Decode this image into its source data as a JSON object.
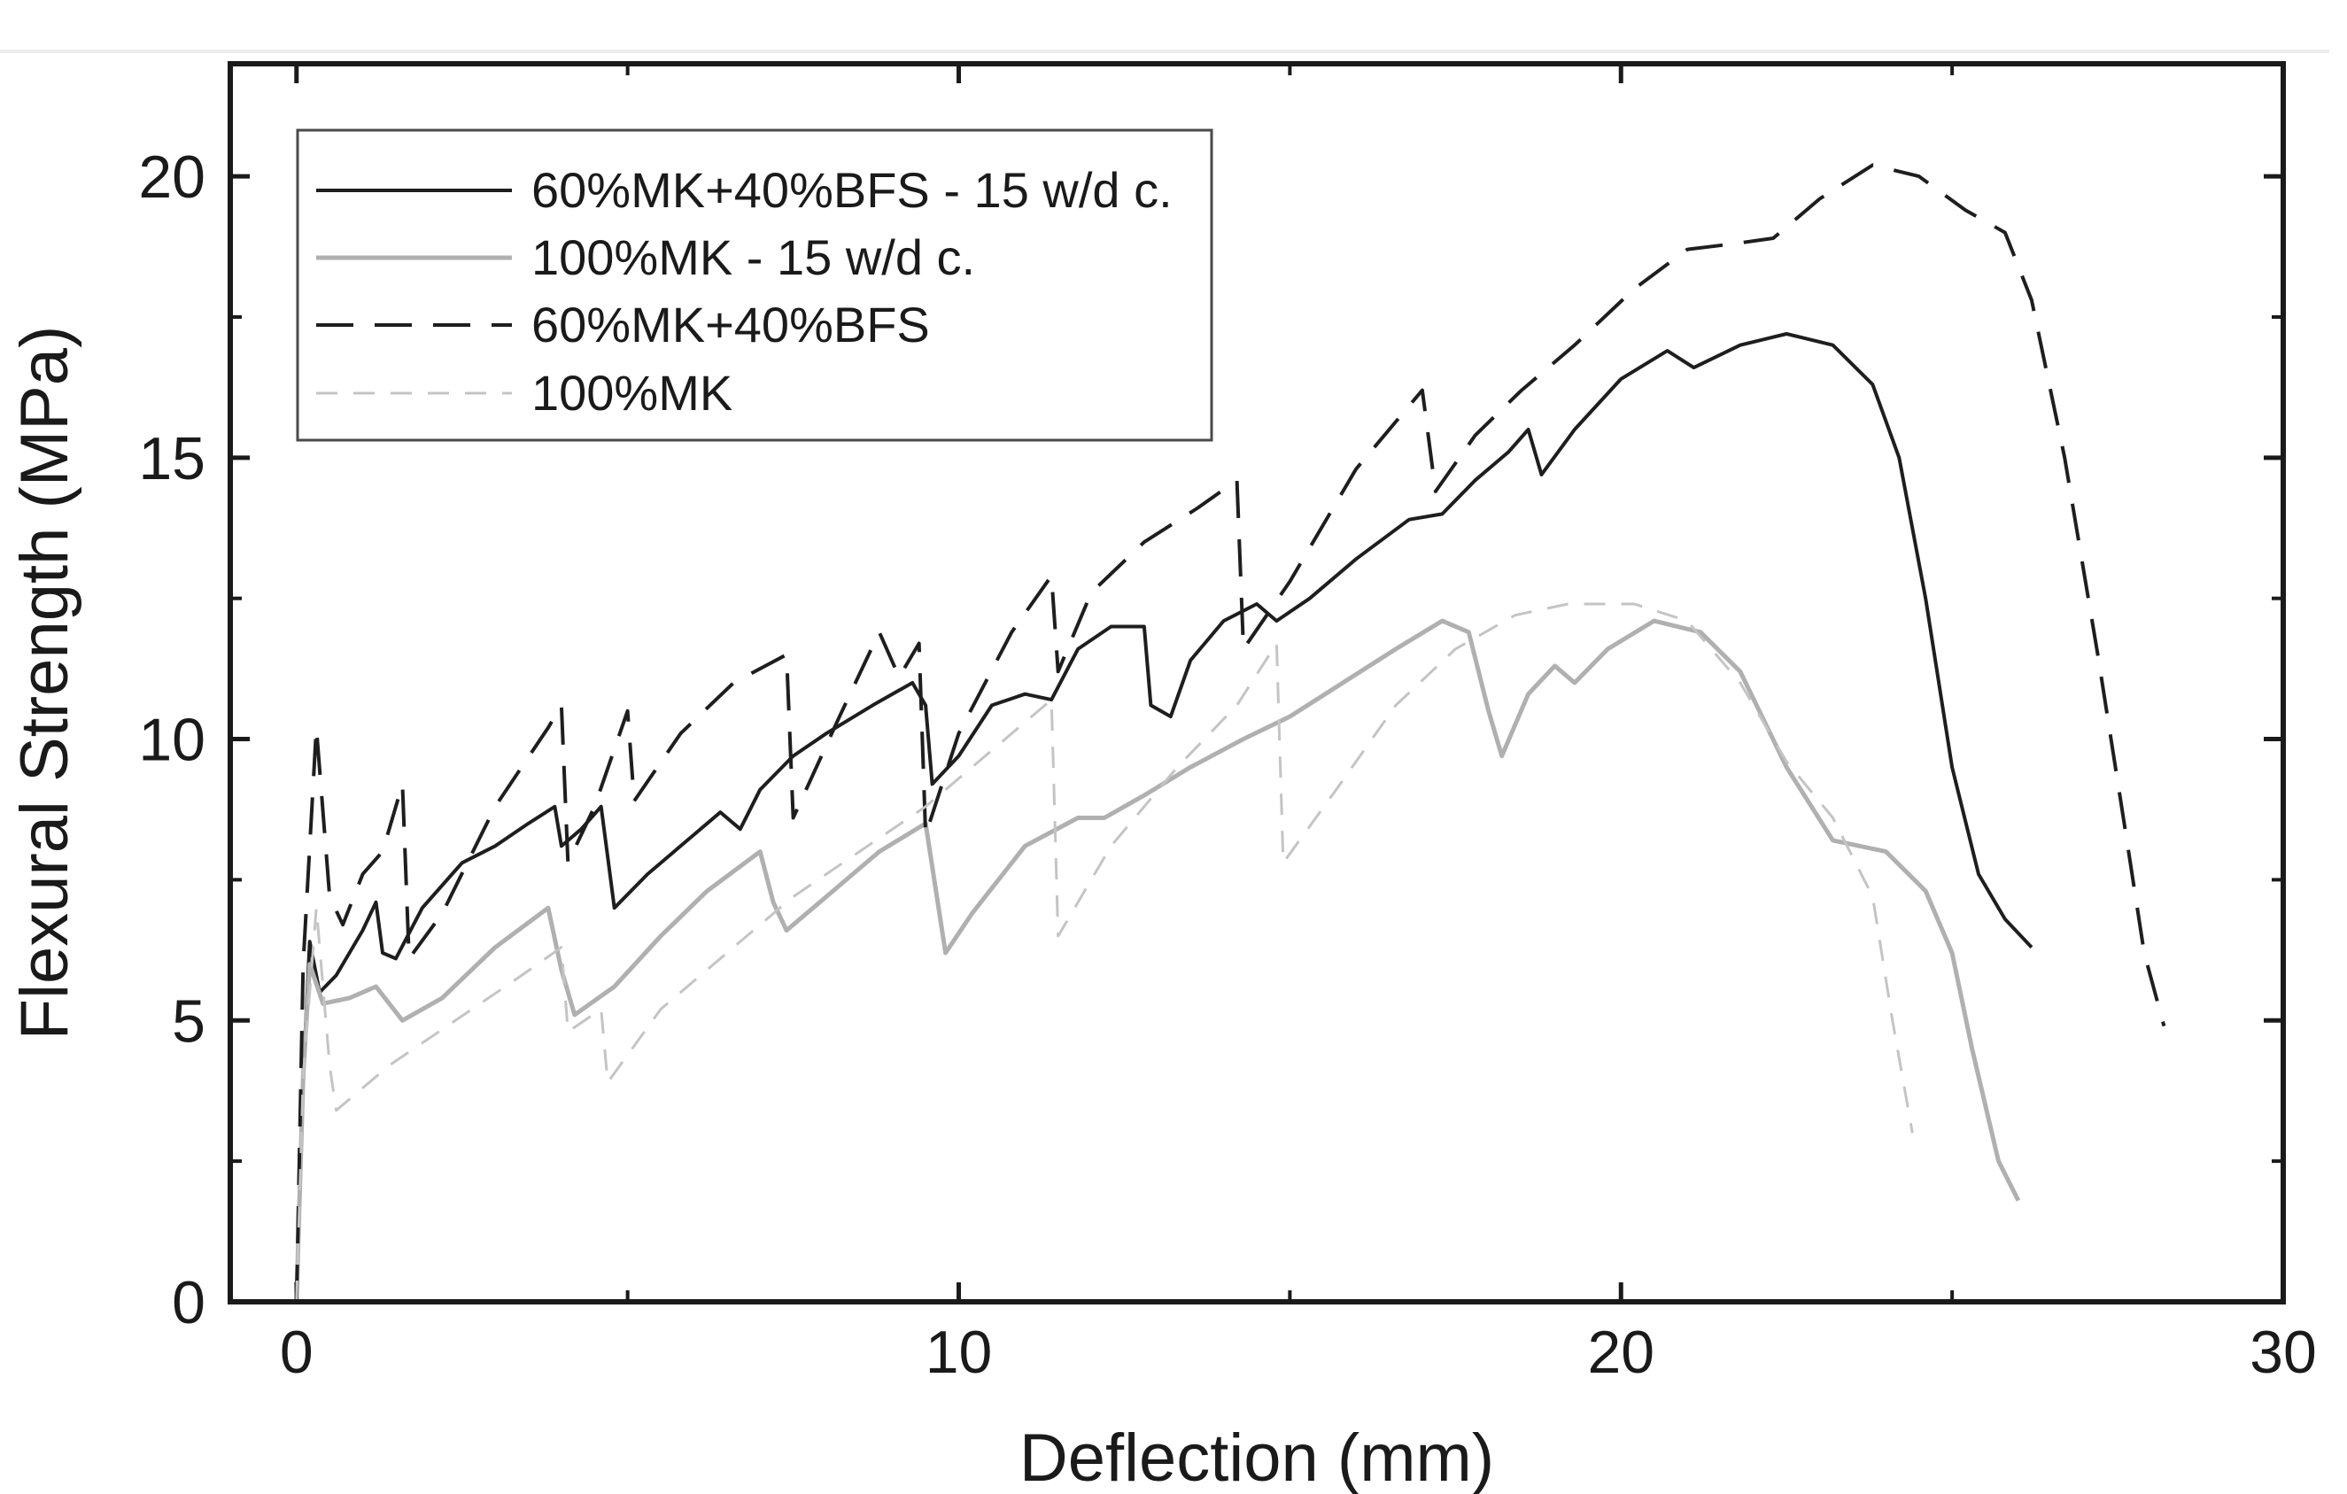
{
  "chart_data": {
    "type": "line",
    "title": "",
    "xlabel": "Deflection (mm)",
    "ylabel": "Flexural Strength (MPa)",
    "xlim": [
      -1,
      30
    ],
    "ylim": [
      0,
      22
    ],
    "x_ticks": [
      0,
      10,
      20,
      30
    ],
    "x_tick_labels": [
      "0",
      "10",
      "20",
      "30"
    ],
    "y_ticks": [
      0,
      5,
      10,
      15,
      20
    ],
    "y_tick_labels": [
      "0",
      "5",
      "10",
      "15",
      "20"
    ],
    "x_minor_ticks": [
      5,
      15,
      25
    ],
    "y_minor_ticks": [
      2.5,
      7.5,
      12.5,
      17.5
    ],
    "grid": false,
    "legend_position": "top-left",
    "series": [
      {
        "name": "60%MK+40%BFS - 15 w/d c.",
        "color": "#1e1e1e",
        "dash": "solid",
        "width": 4,
        "points": [
          [
            0,
            0
          ],
          [
            0.1,
            4
          ],
          [
            0.2,
            6.4
          ],
          [
            0.35,
            5.5
          ],
          [
            0.6,
            5.8
          ],
          [
            1.0,
            6.6
          ],
          [
            1.2,
            7.1
          ],
          [
            1.3,
            6.2
          ],
          [
            1.5,
            6.1
          ],
          [
            1.9,
            7
          ],
          [
            2.5,
            7.8
          ],
          [
            3.0,
            8.1
          ],
          [
            3.5,
            8.5
          ],
          [
            3.9,
            8.8
          ],
          [
            4.0,
            8.1
          ],
          [
            4.3,
            8.4
          ],
          [
            4.6,
            8.8
          ],
          [
            4.8,
            7.0
          ],
          [
            5.3,
            7.6
          ],
          [
            6.0,
            8.3
          ],
          [
            6.4,
            8.7
          ],
          [
            6.7,
            8.4
          ],
          [
            7.0,
            9.1
          ],
          [
            7.5,
            9.7
          ],
          [
            8.0,
            10.1
          ],
          [
            8.7,
            10.6
          ],
          [
            9.3,
            11.0
          ],
          [
            9.5,
            10.6
          ],
          [
            9.6,
            9.2
          ],
          [
            10.0,
            9.7
          ],
          [
            10.5,
            10.6
          ],
          [
            11.0,
            10.8
          ],
          [
            11.4,
            10.7
          ],
          [
            11.8,
            11.6
          ],
          [
            12.3,
            12.0
          ],
          [
            12.8,
            12.0
          ],
          [
            12.9,
            10.6
          ],
          [
            13.2,
            10.4
          ],
          [
            13.5,
            11.4
          ],
          [
            14.0,
            12.1
          ],
          [
            14.5,
            12.4
          ],
          [
            14.8,
            12.1
          ],
          [
            15.3,
            12.5
          ],
          [
            16.0,
            13.2
          ],
          [
            16.8,
            13.9
          ],
          [
            17.3,
            14.0
          ],
          [
            17.8,
            14.6
          ],
          [
            18.3,
            15.1
          ],
          [
            18.6,
            15.5
          ],
          [
            18.8,
            14.7
          ],
          [
            19.3,
            15.5
          ],
          [
            20.0,
            16.4
          ],
          [
            20.7,
            16.9
          ],
          [
            21.1,
            16.6
          ],
          [
            21.8,
            17.0
          ],
          [
            22.5,
            17.2
          ],
          [
            23.2,
            17.0
          ],
          [
            23.8,
            16.3
          ],
          [
            24.2,
            15.0
          ],
          [
            24.6,
            12.5
          ],
          [
            25.0,
            9.5
          ],
          [
            25.4,
            7.6
          ],
          [
            25.8,
            6.8
          ],
          [
            26.2,
            6.3
          ]
        ]
      },
      {
        "name": "100%MK - 15 w/d c.",
        "color": "#b0b0b0",
        "dash": "solid",
        "width": 5,
        "points": [
          [
            0,
            0
          ],
          [
            0.1,
            4
          ],
          [
            0.2,
            6.0
          ],
          [
            0.4,
            5.3
          ],
          [
            0.8,
            5.4
          ],
          [
            1.2,
            5.6
          ],
          [
            1.6,
            5.0
          ],
          [
            2.2,
            5.4
          ],
          [
            3.0,
            6.3
          ],
          [
            3.8,
            7.0
          ],
          [
            4.0,
            5.9
          ],
          [
            4.2,
            5.1
          ],
          [
            4.8,
            5.6
          ],
          [
            5.5,
            6.5
          ],
          [
            6.2,
            7.3
          ],
          [
            7.0,
            8.0
          ],
          [
            7.2,
            7.1
          ],
          [
            7.4,
            6.6
          ],
          [
            8.0,
            7.2
          ],
          [
            8.8,
            8.0
          ],
          [
            9.5,
            8.5
          ],
          [
            9.8,
            6.2
          ],
          [
            10.2,
            6.9
          ],
          [
            11.0,
            8.1
          ],
          [
            11.8,
            8.6
          ],
          [
            12.2,
            8.6
          ],
          [
            12.8,
            9.0
          ],
          [
            13.5,
            9.5
          ],
          [
            14.3,
            10.0
          ],
          [
            15.0,
            10.4
          ],
          [
            15.8,
            11.0
          ],
          [
            16.6,
            11.6
          ],
          [
            17.3,
            12.1
          ],
          [
            17.7,
            11.9
          ],
          [
            18.0,
            10.5
          ],
          [
            18.2,
            9.7
          ],
          [
            18.6,
            10.8
          ],
          [
            19.0,
            11.3
          ],
          [
            19.3,
            11.0
          ],
          [
            19.8,
            11.6
          ],
          [
            20.5,
            12.1
          ],
          [
            21.2,
            11.9
          ],
          [
            21.8,
            11.2
          ],
          [
            22.5,
            9.5
          ],
          [
            23.2,
            8.2
          ],
          [
            24.0,
            8.0
          ],
          [
            24.6,
            7.3
          ],
          [
            25.0,
            6.2
          ],
          [
            25.3,
            4.5
          ],
          [
            25.7,
            2.5
          ],
          [
            26.0,
            1.8
          ]
        ]
      },
      {
        "name": "60%MK+40%BFS",
        "color": "#1e1e1e",
        "dash": "42,24",
        "width": 4,
        "points": [
          [
            0,
            0
          ],
          [
            0.1,
            6
          ],
          [
            0.3,
            10.2
          ],
          [
            0.5,
            7.2
          ],
          [
            0.7,
            6.7
          ],
          [
            1.0,
            7.6
          ],
          [
            1.3,
            8.0
          ],
          [
            1.6,
            9.2
          ],
          [
            1.7,
            6.1
          ],
          [
            2.2,
            6.9
          ],
          [
            3.0,
            8.8
          ],
          [
            3.8,
            10.2
          ],
          [
            4.0,
            10.6
          ],
          [
            4.1,
            7.8
          ],
          [
            4.5,
            8.8
          ],
          [
            5.0,
            10.5
          ],
          [
            5.1,
            8.9
          ],
          [
            5.8,
            10.1
          ],
          [
            6.6,
            11.0
          ],
          [
            7.4,
            11.5
          ],
          [
            7.5,
            8.6
          ],
          [
            8.2,
            10.4
          ],
          [
            8.8,
            11.9
          ],
          [
            9.1,
            11.1
          ],
          [
            9.4,
            11.7
          ],
          [
            9.5,
            8.3
          ],
          [
            10.0,
            10.1
          ],
          [
            10.8,
            11.9
          ],
          [
            11.4,
            12.9
          ],
          [
            11.5,
            11.2
          ],
          [
            12.0,
            12.6
          ],
          [
            12.8,
            13.5
          ],
          [
            13.6,
            14.1
          ],
          [
            14.2,
            14.6
          ],
          [
            14.3,
            11.6
          ],
          [
            15.0,
            12.8
          ],
          [
            16.0,
            14.8
          ],
          [
            17.0,
            16.2
          ],
          [
            17.2,
            14.4
          ],
          [
            17.8,
            15.4
          ],
          [
            18.5,
            16.2
          ],
          [
            19.3,
            17.0
          ],
          [
            20.2,
            18.0
          ],
          [
            21.0,
            18.7
          ],
          [
            21.7,
            18.8
          ],
          [
            22.3,
            18.9
          ],
          [
            23.0,
            19.6
          ],
          [
            23.8,
            20.2
          ],
          [
            24.5,
            20.0
          ],
          [
            25.2,
            19.4
          ],
          [
            25.8,
            19.0
          ],
          [
            26.2,
            17.8
          ],
          [
            26.7,
            15.0
          ],
          [
            27.2,
            11.5
          ],
          [
            27.6,
            8.5
          ],
          [
            27.9,
            6.2
          ],
          [
            28.2,
            4.9
          ]
        ]
      },
      {
        "name": "100%MK",
        "color": "#c4c4c4",
        "dash": "24,18",
        "width": 3,
        "points": [
          [
            0,
            0
          ],
          [
            0.1,
            4
          ],
          [
            0.3,
            7.0
          ],
          [
            0.5,
            4.2
          ],
          [
            0.6,
            3.4
          ],
          [
            1.4,
            4.2
          ],
          [
            2.4,
            5.0
          ],
          [
            3.4,
            5.8
          ],
          [
            4.0,
            6.3
          ],
          [
            4.1,
            4.8
          ],
          [
            4.6,
            5.2
          ],
          [
            4.7,
            3.9
          ],
          [
            5.5,
            5.2
          ],
          [
            6.5,
            6.2
          ],
          [
            7.5,
            7.2
          ],
          [
            8.5,
            8.0
          ],
          [
            9.5,
            8.8
          ],
          [
            10.5,
            9.8
          ],
          [
            11.4,
            10.7
          ],
          [
            11.5,
            6.5
          ],
          [
            12.3,
            8.1
          ],
          [
            13.3,
            9.5
          ],
          [
            14.2,
            10.6
          ],
          [
            14.8,
            11.7
          ],
          [
            14.9,
            7.8
          ],
          [
            15.7,
            9.1
          ],
          [
            16.6,
            10.6
          ],
          [
            17.5,
            11.6
          ],
          [
            18.4,
            12.2
          ],
          [
            19.2,
            12.4
          ],
          [
            20.2,
            12.4
          ],
          [
            21.0,
            12.1
          ],
          [
            21.8,
            11.0
          ],
          [
            22.5,
            9.6
          ],
          [
            23.2,
            8.6
          ],
          [
            23.8,
            7.2
          ],
          [
            24.1,
            5.0
          ],
          [
            24.4,
            3.0
          ]
        ]
      }
    ]
  }
}
